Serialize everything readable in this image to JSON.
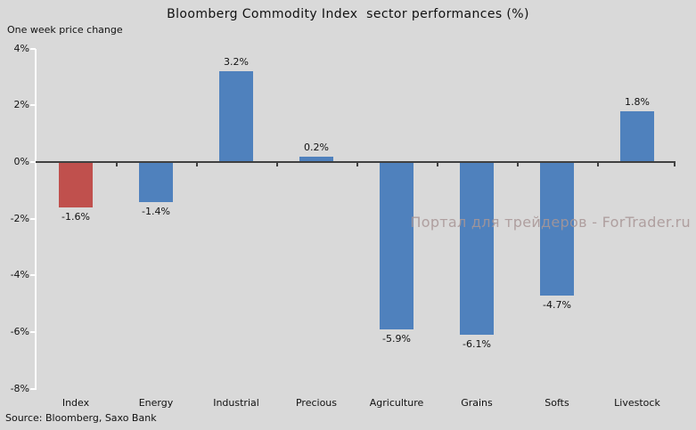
{
  "page": {
    "watermark": "Портал для трейдеров - ForTrader.ru"
  },
  "chart_data": {
    "type": "bar",
    "title": "Bloomberg Commodity Index  sector performances (%)",
    "subtitle": "One week price change",
    "source": "Source: Bloomberg, Saxo Bank",
    "categories": [
      "Index",
      "Energy",
      "Industrial",
      "Precious",
      "Agriculture",
      "Grains",
      "Softs",
      "Livestock"
    ],
    "values": [
      -1.6,
      -1.4,
      3.2,
      0.2,
      -5.9,
      -6.1,
      -4.7,
      1.8
    ],
    "value_labels": [
      "-1.6%",
      "-1.4%",
      "3.2%",
      "0.2%",
      "-5.9%",
      "-6.1%",
      "-4.7%",
      "1.8%"
    ],
    "bar_colors": [
      "#c0504d",
      "#4f81bd",
      "#4f81bd",
      "#4f81bd",
      "#4f81bd",
      "#4f81bd",
      "#4f81bd",
      "#4f81bd"
    ],
    "ylim": [
      -8,
      4
    ],
    "yticks": [
      {
        "value": 4,
        "label": "4%"
      },
      {
        "value": 2,
        "label": "2%"
      },
      {
        "value": 0,
        "label": "0%"
      },
      {
        "value": -2,
        "label": "-2%"
      },
      {
        "value": -4,
        "label": "-4%"
      },
      {
        "value": -6,
        "label": "-6%"
      },
      {
        "value": -8,
        "label": "-8%"
      }
    ],
    "grid": false,
    "legend": false,
    "colors": {
      "background": "#d9d9d9",
      "bar_default": "#4f81bd",
      "bar_index": "#c0504d",
      "zero_line": "#404040",
      "axis_line": "#ffffff",
      "text": "#000000",
      "watermark": "#a89898"
    }
  }
}
